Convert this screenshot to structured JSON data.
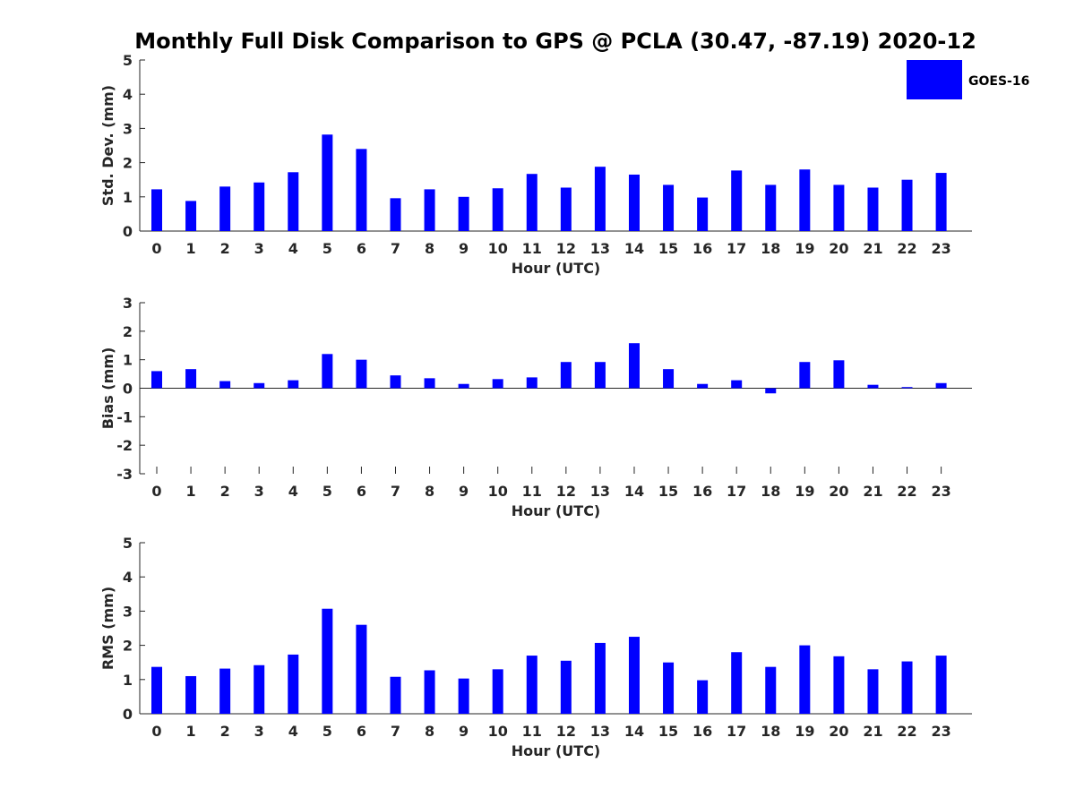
{
  "title": "Monthly Full Disk Comparison to GPS @ PCLA (30.47, -87.19) 2020-12",
  "colors": {
    "bar": "#0000ff",
    "axis": "#262626"
  },
  "legend": {
    "label": "GOES-16",
    "placement": "top-right"
  },
  "chart_data": [
    {
      "type": "bar",
      "title": "",
      "xlabel": "Hour (UTC)",
      "ylabel": "Std. Dev. (mm)",
      "categories": [
        "0",
        "1",
        "2",
        "3",
        "4",
        "5",
        "6",
        "7",
        "8",
        "9",
        "10",
        "11",
        "12",
        "13",
        "14",
        "15",
        "16",
        "17",
        "18",
        "19",
        "20",
        "21",
        "22",
        "23"
      ],
      "series": [
        {
          "name": "GOES-16",
          "values": [
            1.22,
            0.88,
            1.3,
            1.42,
            1.72,
            2.82,
            2.4,
            0.96,
            1.22,
            1.0,
            1.25,
            1.67,
            1.27,
            1.88,
            1.65,
            1.35,
            0.98,
            1.77,
            1.35,
            1.8,
            1.35,
            1.27,
            1.5,
            1.7
          ]
        }
      ],
      "ylim": [
        0,
        5
      ],
      "yticks": [
        0,
        1,
        2,
        3,
        4,
        5
      ],
      "ytick_labels": [
        "0",
        "1",
        "2",
        "3",
        "4",
        "5"
      ]
    },
    {
      "type": "bar",
      "title": "",
      "xlabel": "Hour (UTC)",
      "ylabel": "Bias (mm)",
      "categories": [
        "0",
        "1",
        "2",
        "3",
        "4",
        "5",
        "6",
        "7",
        "8",
        "9",
        "10",
        "11",
        "12",
        "13",
        "14",
        "15",
        "16",
        "17",
        "18",
        "19",
        "20",
        "21",
        "22",
        "23"
      ],
      "series": [
        {
          "name": "GOES-16",
          "values": [
            0.6,
            0.67,
            0.25,
            0.18,
            0.28,
            1.2,
            1.0,
            0.45,
            0.35,
            0.15,
            0.32,
            0.38,
            0.92,
            0.92,
            1.58,
            0.67,
            0.15,
            0.28,
            -0.18,
            0.92,
            0.98,
            0.12,
            0.04,
            0.18
          ]
        }
      ],
      "ylim": [
        -3,
        3
      ],
      "yticks": [
        -3,
        -2,
        -1,
        0,
        1,
        2,
        3
      ],
      "ytick_labels": [
        "-3",
        "-2",
        "-1",
        "0",
        "1",
        "2",
        "3"
      ]
    },
    {
      "type": "bar",
      "title": "",
      "xlabel": "Hour (UTC)",
      "ylabel": "RMS (mm)",
      "categories": [
        "0",
        "1",
        "2",
        "3",
        "4",
        "5",
        "6",
        "7",
        "8",
        "9",
        "10",
        "11",
        "12",
        "13",
        "14",
        "15",
        "16",
        "17",
        "18",
        "19",
        "20",
        "21",
        "22",
        "23"
      ],
      "series": [
        {
          "name": "GOES-16",
          "values": [
            1.37,
            1.1,
            1.32,
            1.42,
            1.73,
            3.07,
            2.6,
            1.08,
            1.27,
            1.03,
            1.3,
            1.7,
            1.55,
            2.07,
            2.25,
            1.5,
            0.98,
            1.8,
            1.37,
            2.0,
            1.68,
            1.3,
            1.53,
            1.7
          ]
        }
      ],
      "ylim": [
        0,
        5
      ],
      "yticks": [
        0,
        1,
        2,
        3,
        4,
        5
      ],
      "ytick_labels": [
        "0",
        "1",
        "2",
        "3",
        "4",
        "5"
      ]
    }
  ]
}
